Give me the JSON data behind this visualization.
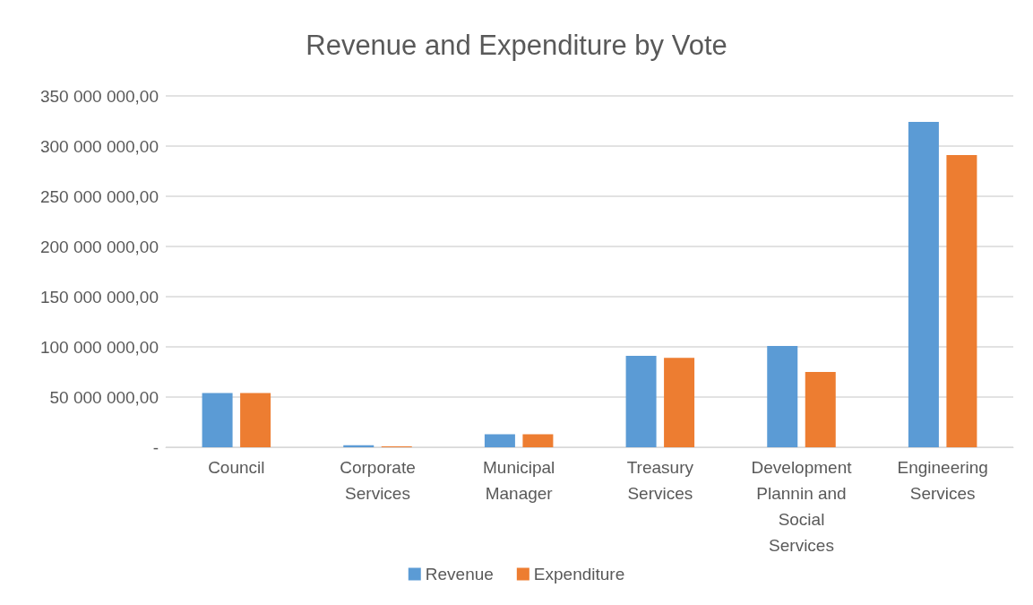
{
  "chart_data": {
    "type": "bar",
    "title": "Revenue and Expenditure by Vote",
    "categories": [
      "Council",
      "Corporate Services",
      "Municipal Manager",
      "Treasury Services",
      "Development Plannin and Social Services",
      "Engineering Services"
    ],
    "series": [
      {
        "name": "Revenue",
        "color": "#5b9bd5",
        "values": [
          54000000,
          2000000,
          13000000,
          91000000,
          101000000,
          324000000
        ]
      },
      {
        "name": "Expenditure",
        "color": "#ed7d31",
        "values": [
          54000000,
          1000000,
          13000000,
          89000000,
          75000000,
          291000000
        ]
      }
    ],
    "ylim": [
      0,
      350000000
    ],
    "yticks": [
      {
        "value": 0,
        "label": "-"
      },
      {
        "value": 50000000,
        "label": "50 000 000,00"
      },
      {
        "value": 100000000,
        "label": "100 000 000,00"
      },
      {
        "value": 150000000,
        "label": "150 000 000,00"
      },
      {
        "value": 200000000,
        "label": "200 000 000,00"
      },
      {
        "value": 250000000,
        "label": "250 000 000,00"
      },
      {
        "value": 300000000,
        "label": "300 000 000,00"
      },
      {
        "value": 350000000,
        "label": "350 000 000,00"
      }
    ],
    "grid": "y",
    "legend": "bottom"
  }
}
